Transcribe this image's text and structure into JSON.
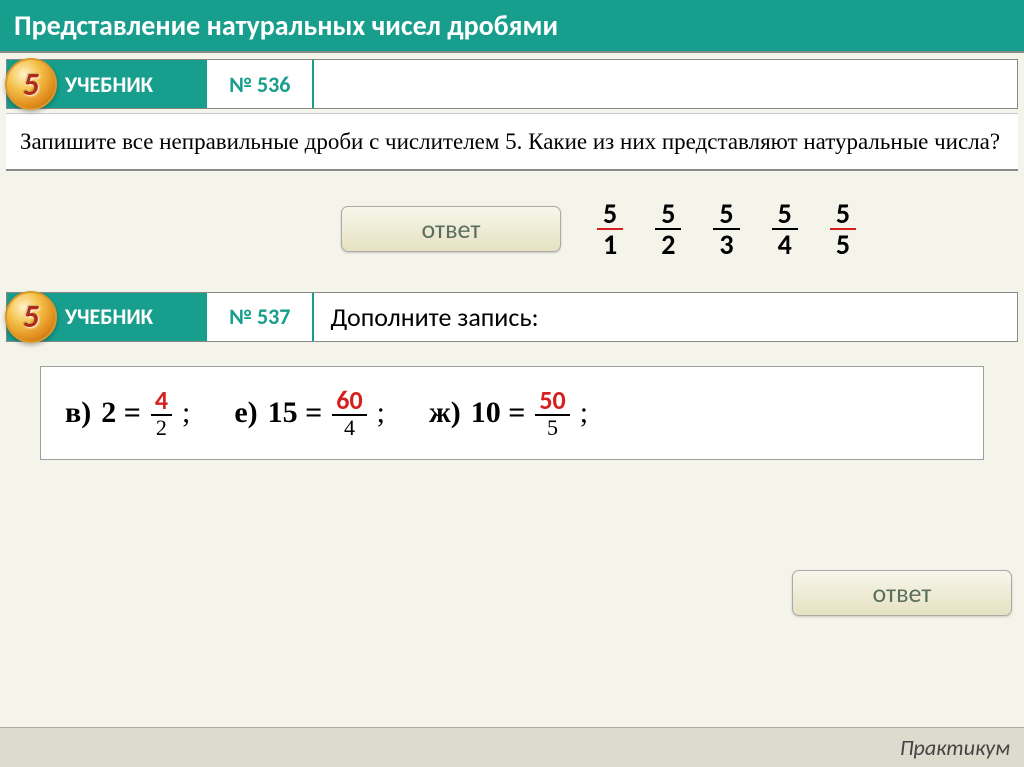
{
  "title": "Представление натуральных чисел дробями",
  "ex1": {
    "badge": "5",
    "label": "УЧЕБНИК",
    "number": "№ 536",
    "question": "Запишите все неправильные дроби с числителем 5. Какие из них представляют натуральные числа?",
    "answer_btn": "ответ",
    "fractions": [
      {
        "num": "5",
        "den": "1",
        "hl": true
      },
      {
        "num": "5",
        "den": "2",
        "hl": false
      },
      {
        "num": "5",
        "den": "3",
        "hl": false
      },
      {
        "num": "5",
        "den": "4",
        "hl": false
      },
      {
        "num": "5",
        "den": "5",
        "hl": true
      }
    ]
  },
  "ex2": {
    "badge": "5",
    "label": "УЧЕБНИК",
    "number": "№ 537",
    "prompt": "Дополните запись:",
    "items": [
      {
        "letter": "в)",
        "whole": "2",
        "num": "4",
        "den": "2"
      },
      {
        "letter": "е)",
        "whole": "15",
        "num": "60",
        "den": "4"
      },
      {
        "letter": "ж)",
        "whole": "10",
        "num": "50",
        "den": "5"
      }
    ],
    "answer_btn": "ответ"
  },
  "footer": "Практикум",
  "colors": {
    "teal": "#179e8c",
    "red": "#d62020",
    "bg": "#f5f4eb"
  }
}
